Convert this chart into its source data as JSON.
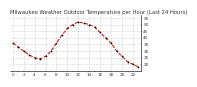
{
  "title": "Milwaukee Weather Outdoor Temperature per Hour (Last 24 Hours)",
  "hours": [
    0,
    1,
    2,
    3,
    4,
    5,
    6,
    7,
    8,
    9,
    10,
    11,
    12,
    13,
    14,
    15,
    16,
    17,
    18,
    19,
    20,
    21,
    22,
    23
  ],
  "temps": [
    36,
    33,
    30,
    27,
    25,
    24,
    26,
    30,
    36,
    42,
    47,
    50,
    52,
    51,
    50,
    48,
    44,
    40,
    36,
    30,
    26,
    22,
    20,
    18
  ],
  "line_color": "#cc0000",
  "marker_color": "#000000",
  "grid_color": "#aaaaaa",
  "bg_color": "#ffffff",
  "ylim": [
    15,
    57
  ],
  "ytick_vals": [
    20,
    25,
    30,
    35,
    40,
    45,
    50,
    55
  ],
  "ytick_labels": [
    "20",
    "25",
    "30",
    "35",
    "40",
    "45",
    "50",
    "55"
  ],
  "title_fontsize": 3.8,
  "tick_fontsize": 3.0,
  "line_width": 0.7,
  "marker_size": 1.8
}
